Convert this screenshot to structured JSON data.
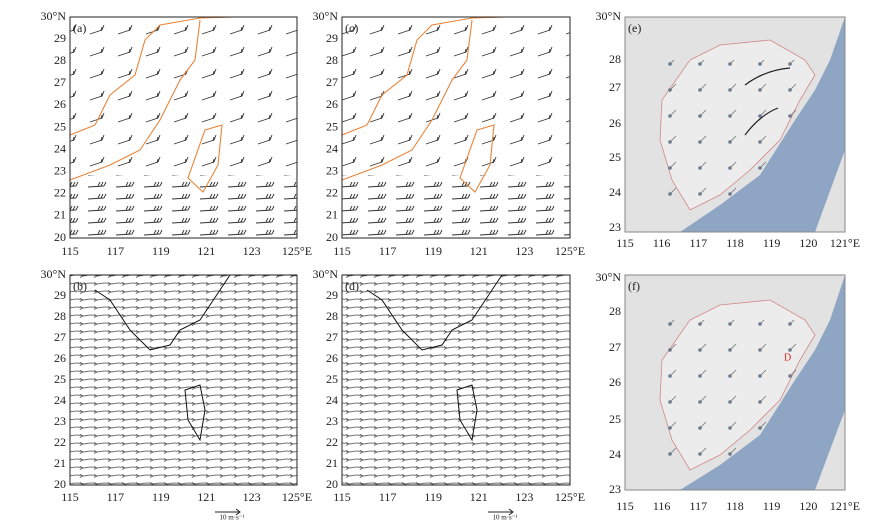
{
  "panels": [
    {
      "label": "(a)",
      "xticks": [
        "115",
        "117",
        "119",
        "121",
        "123",
        "125°E"
      ],
      "yticks": [
        "20",
        "21",
        "22",
        "23",
        "24",
        "25",
        "26",
        "27",
        "28",
        "29",
        "30°N"
      ]
    },
    {
      "label": "(b)",
      "xticks": [
        "115",
        "117",
        "119",
        "121",
        "123",
        "125°E"
      ],
      "yticks": [
        "20",
        "21",
        "22",
        "23",
        "24",
        "25",
        "26",
        "27",
        "28",
        "29",
        "30°N"
      ],
      "scale": "10 m·s⁻¹"
    },
    {
      "label": "(c)",
      "xticks": [
        "115",
        "117",
        "119",
        "121",
        "123",
        "125°E"
      ],
      "yticks": [
        "20",
        "21",
        "22",
        "23",
        "24",
        "25",
        "26",
        "27",
        "28",
        "29",
        "30°N"
      ]
    },
    {
      "label": "(d)",
      "xticks": [
        "115",
        "117",
        "119",
        "121",
        "123",
        "125°E"
      ],
      "yticks": [
        "20",
        "21",
        "22",
        "23",
        "24",
        "25",
        "26",
        "27",
        "28",
        "29",
        "30°N"
      ],
      "scale": "10 m·s⁻¹"
    },
    {
      "label": "(e)",
      "xticks": [
        "115",
        "116",
        "117",
        "118",
        "119",
        "120",
        "121°E"
      ],
      "yticks": [
        "23",
        "24",
        "25",
        "26",
        "27",
        "28",
        "30°N"
      ]
    },
    {
      "label": "(f)",
      "xticks": [
        "115",
        "116",
        "117",
        "118",
        "119",
        "120",
        "121°E"
      ],
      "yticks": [
        "23",
        "24",
        "25",
        "26",
        "27",
        "28",
        "30°N"
      ]
    }
  ]
}
